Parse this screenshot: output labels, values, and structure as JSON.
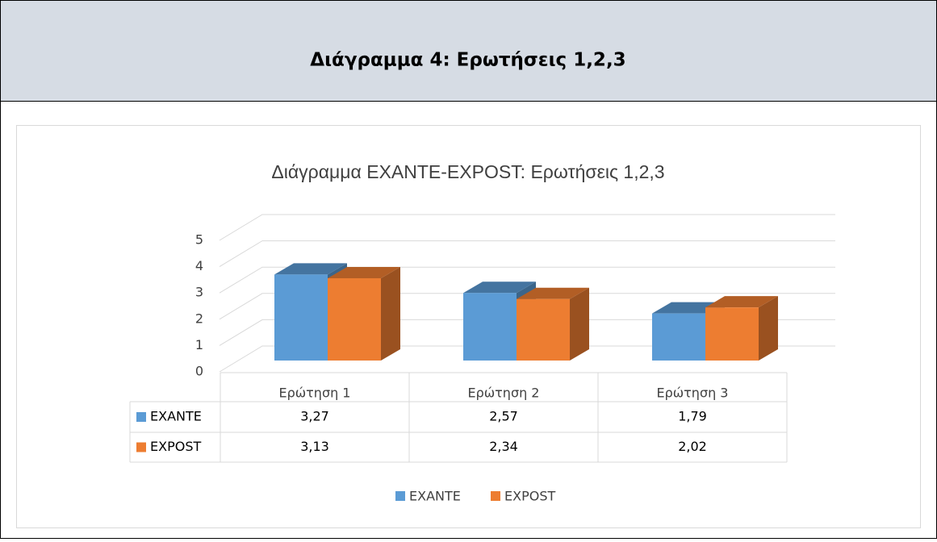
{
  "header": {
    "title": "Διάγραμμα 4: Ερωτήσεις 1,2,3"
  },
  "chart_data": {
    "type": "bar3d",
    "title": "Διάγραμμα  EXANTE-EXPOST: Ερωτήσεις 1,2,3",
    "categories": [
      "Ερώτηση 1",
      "Ερώτηση 2",
      "Ερώτηση 3"
    ],
    "series": [
      {
        "name": "EXANTE",
        "color": "#5b9bd5",
        "values": [
          3.27,
          2.57,
          1.79
        ],
        "value_labels": [
          "3,27",
          "2,57",
          "1,79"
        ]
      },
      {
        "name": "EXPOST",
        "color": "#ed7d31",
        "values": [
          3.13,
          2.34,
          2.02
        ],
        "value_labels": [
          "3,13",
          "2,34",
          "2,02"
        ]
      }
    ],
    "ylim": [
      0,
      5
    ],
    "yticks": [
      0,
      1,
      2,
      3,
      4,
      5
    ],
    "grid": true
  }
}
